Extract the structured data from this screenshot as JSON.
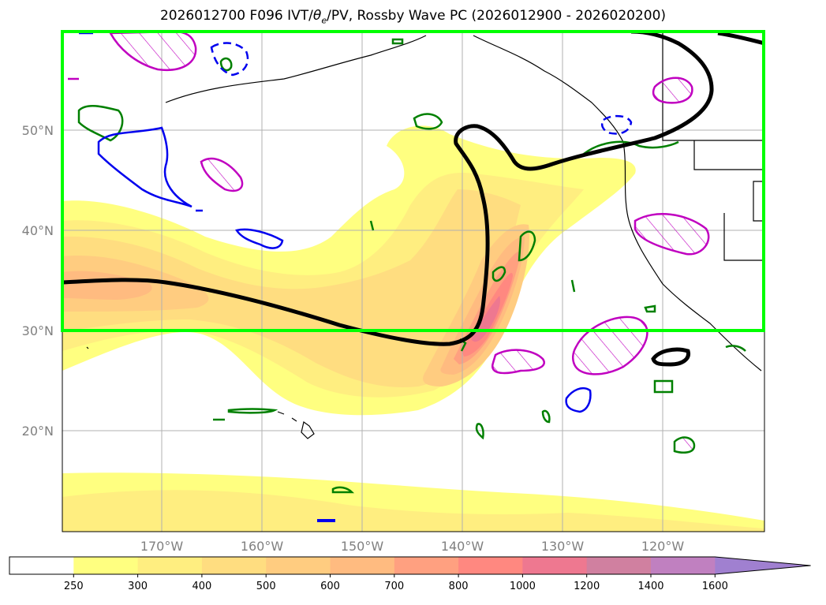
{
  "title": "2026012700 F096 IVT/θe/PV, Rossby Wave PC (2026012900 - 2026020200)",
  "title_parts": {
    "prefix": "2026012700 F096 IVT/",
    "theta": "θ",
    "theta_sub": "e",
    "suffix": "/PV, Rossby Wave PC (2026012900 - 2026020200)"
  },
  "map": {
    "lat_labels": [
      "50°N",
      "40°N",
      "30°N",
      "20°N"
    ],
    "lon_labels": [
      "170°W",
      "160°W",
      "150°W",
      "140°W",
      "130°W",
      "120°W"
    ],
    "highlight_box_color": "#00ff00",
    "coastline_color": "#000000"
  },
  "colorbar": {
    "ticks": [
      "250",
      "300",
      "400",
      "500",
      "600",
      "700",
      "800",
      "1000",
      "1200",
      "1400",
      "1600"
    ],
    "colors": [
      "#ffffff",
      "#ffff80",
      "#ffee80",
      "#ffdd80",
      "#ffcc80",
      "#ffbb80",
      "#ffa080",
      "#ff8880",
      "#ee7890",
      "#d080a0",
      "#c080c0",
      "#a080d0"
    ],
    "extend": "max"
  },
  "contours": {
    "magenta_hatched": "#c000c0",
    "green": "#008000",
    "blue": "#0000ff",
    "black_thick": "#000000"
  }
}
